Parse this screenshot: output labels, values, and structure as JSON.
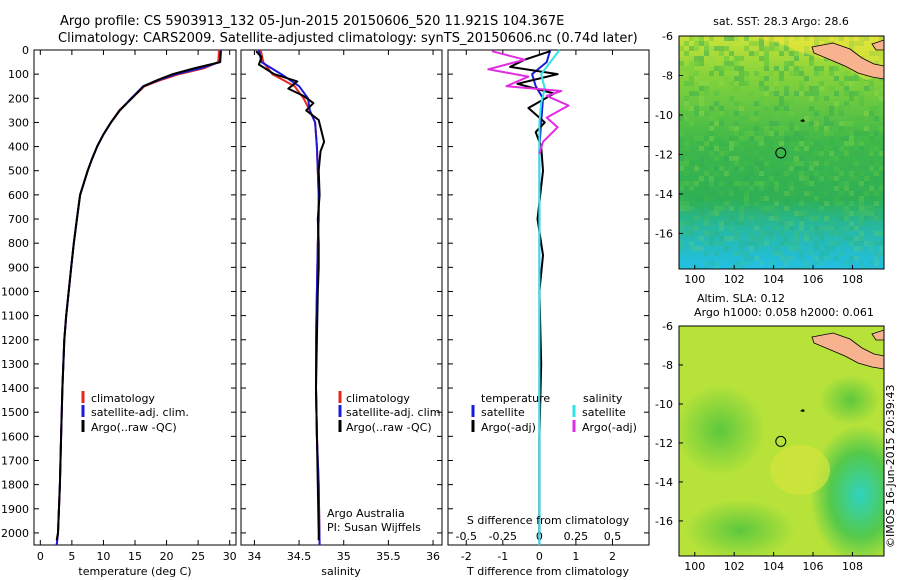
{
  "header": {
    "line1": "Argo profile: CS 5903913_132 05-Jun-2015 20150606_520 11.921S 104.367E",
    "line2": "Climatology: CARS2009. Satellite-adjusted climatology: synTS_20150606.nc (0.74d later)"
  },
  "watermark": "©IMOS 16-Jun-2015 20:39:43",
  "colors": {
    "climatology": "#e8271b",
    "satellite": "#1a1adc",
    "argo": "#000000",
    "salinity_satellite": "#2fe4e4",
    "salinity_argo": "#e22ce2",
    "land": "#f7b38f"
  },
  "chart_data": [
    {
      "type": "line",
      "panel": "temperature",
      "xlabel": "temperature (deg C)",
      "xlim": [
        -1,
        31
      ],
      "ylim": [
        2050,
        0
      ],
      "xticks": [
        "0",
        "5",
        "10",
        "15",
        "20",
        "25",
        "30"
      ],
      "yticks": [
        "0",
        "100",
        "200",
        "300",
        "400",
        "500",
        "600",
        "700",
        "800",
        "900",
        "1000",
        "1100",
        "1200",
        "1300",
        "1400",
        "1500",
        "1600",
        "1700",
        "1800",
        "1900",
        "2000"
      ],
      "legend": [
        "climatology",
        "satellite-adj. clim.",
        "Argo(..raw -QC)"
      ],
      "series": [
        {
          "name": "climatology",
          "color": "#e8271b",
          "x": [
            28.3,
            28.2,
            26.0,
            22.0,
            19.0,
            16.5,
            14.5,
            12.5,
            11.2,
            10.0,
            9.0,
            8.2,
            7.5,
            6.9,
            6.3,
            5.8,
            5.3,
            4.9,
            4.5,
            4.1,
            3.8,
            3.5,
            3.3,
            3.1,
            2.8,
            2.6
          ],
          "y": [
            0,
            50,
            75,
            100,
            125,
            150,
            200,
            250,
            300,
            350,
            400,
            450,
            500,
            550,
            600,
            700,
            800,
            900,
            1000,
            1100,
            1200,
            1400,
            1600,
            1800,
            2000,
            2050
          ]
        },
        {
          "name": "satellite-adj. clim.",
          "color": "#1a1adc",
          "x": [
            28.6,
            28.4,
            25.5,
            21.5,
            18.7,
            16.3,
            14.4,
            12.6,
            11.2,
            10.0,
            9.0,
            8.2,
            7.5,
            6.9,
            6.3,
            5.8,
            5.3,
            4.9,
            4.5,
            4.1,
            3.8,
            3.5,
            3.3,
            3.1,
            2.8,
            2.6
          ],
          "y": [
            0,
            50,
            75,
            100,
            125,
            150,
            200,
            250,
            300,
            350,
            400,
            450,
            500,
            550,
            600,
            700,
            800,
            900,
            1000,
            1100,
            1200,
            1400,
            1600,
            1800,
            2000,
            2050
          ]
        },
        {
          "name": "Argo(..raw -QC)",
          "color": "#000000",
          "x": [
            28.6,
            28.5,
            24.5,
            21.0,
            18.5,
            16.4,
            14.5,
            12.6,
            11.2,
            10.0,
            9.0,
            8.2,
            7.5,
            6.9,
            6.3,
            5.8,
            5.3,
            4.9,
            4.5,
            4.1,
            3.8,
            3.5,
            3.3,
            3.1,
            2.8,
            2.6
          ],
          "y": [
            5,
            50,
            75,
            100,
            125,
            150,
            200,
            250,
            300,
            350,
            400,
            450,
            500,
            550,
            600,
            700,
            800,
            900,
            1000,
            1100,
            1200,
            1400,
            1600,
            1800,
            2000,
            2030
          ]
        }
      ]
    },
    {
      "type": "line",
      "panel": "salinity",
      "xlabel": "salinity",
      "xlim": [
        33.85,
        36.1
      ],
      "ylim": [
        2050,
        0
      ],
      "xticks": [
        "34",
        "34.5",
        "35",
        "35.5",
        "36"
      ],
      "legend": [
        "climatology",
        "satellite-adj. clim.",
        "Argo(..raw -QC)"
      ],
      "annotation": [
        "Argo Australia",
        "PI: Susan Wijffels"
      ],
      "series": [
        {
          "name": "climatology",
          "color": "#e8271b",
          "x": [
            34.07,
            34.1,
            34.2,
            34.45,
            34.55,
            34.62,
            34.68,
            34.7,
            34.71,
            34.72,
            34.72,
            34.71,
            34.7,
            34.69,
            34.69,
            34.7,
            34.72,
            34.73
          ],
          "y": [
            0,
            50,
            100,
            150,
            200,
            250,
            300,
            400,
            500,
            600,
            700,
            800,
            1000,
            1200,
            1400,
            1600,
            1800,
            2050
          ]
        },
        {
          "name": "satellite-adj. clim.",
          "color": "#1a1adc",
          "x": [
            34.05,
            34.08,
            34.3,
            34.5,
            34.6,
            34.62,
            34.68,
            34.7,
            34.71,
            34.72,
            34.72,
            34.71,
            34.7,
            34.69,
            34.69,
            34.7,
            34.72,
            34.73
          ],
          "y": [
            0,
            50,
            100,
            150,
            200,
            250,
            300,
            400,
            500,
            600,
            700,
            800,
            1000,
            1200,
            1400,
            1600,
            1800,
            2050
          ]
        },
        {
          "name": "Argo(..raw -QC)",
          "color": "#000000",
          "x": [
            34.02,
            34.08,
            34.05,
            34.22,
            34.48,
            34.38,
            34.55,
            34.66,
            34.58,
            34.72,
            34.78,
            34.74,
            34.72,
            34.73,
            34.71,
            34.72,
            34.72,
            34.71,
            34.7,
            34.69,
            34.7,
            34.71,
            34.72,
            34.72
          ],
          "y": [
            5,
            30,
            60,
            100,
            130,
            160,
            190,
            220,
            250,
            290,
            380,
            420,
            500,
            600,
            700,
            800,
            900,
            1000,
            1200,
            1400,
            1600,
            1800,
            2000,
            2030
          ]
        }
      ]
    },
    {
      "type": "line",
      "panel": "difference",
      "xlabel": "T difference from climatology",
      "xlabel_top": "S difference from climatology",
      "xlim": [
        -2.5,
        3.0
      ],
      "ylim": [
        2050,
        0
      ],
      "xticks": [
        "-2",
        "-1",
        "0",
        "1",
        "2"
      ],
      "xticks_top": [
        "-0.5",
        "-0.25",
        "0",
        "0.25",
        "0.5"
      ],
      "legend": {
        "temperature_header": "temperature",
        "salinity_header": "salinity",
        "items": [
          "satellite",
          "Argo(-adj)",
          "satellite",
          "Argo(-adj)"
        ]
      },
      "series": [
        {
          "name": "temperature satellite",
          "color": "#1a1adc",
          "x": [
            0.3,
            0.2,
            -0.2,
            -0.1,
            0.1,
            0.05,
            0.0,
            0.0,
            0.0,
            0.0,
            0.0,
            0.0,
            0.0
          ],
          "y": [
            0,
            50,
            100,
            150,
            200,
            300,
            400,
            600,
            800,
            1000,
            1400,
            1800,
            2050
          ]
        },
        {
          "name": "temperature Argo(-adj)",
          "color": "#000000",
          "x": [
            0.3,
            -0.4,
            -0.8,
            0.5,
            -0.6,
            0.4,
            -0.3,
            0.15,
            -0.1,
            0.05,
            0.1,
            -0.05,
            0.1,
            0.0,
            0.05,
            0.0,
            0.0
          ],
          "y": [
            5,
            40,
            70,
            100,
            140,
            180,
            240,
            300,
            340,
            400,
            500,
            700,
            850,
            1000,
            1300,
            1600,
            2030
          ]
        },
        {
          "name": "salinity satellite",
          "color": "#2fe4e4",
          "x": [
            0.55,
            0.3,
            0.05,
            0.15,
            0.05,
            0.0,
            0.0,
            0.0,
            0.0,
            0.0,
            0.0,
            0.0
          ],
          "y": [
            0,
            50,
            100,
            160,
            220,
            300,
            400,
            600,
            800,
            1000,
            1400,
            2050
          ]
        },
        {
          "name": "salinity Argo(-adj)",
          "color": "#e22ce2",
          "x": [
            -1.3,
            -0.4,
            -1.4,
            -0.3,
            -0.9,
            0.6,
            0.2,
            0.8,
            0.2,
            0.5,
            0.1,
            0.0
          ],
          "y": [
            5,
            40,
            80,
            110,
            150,
            170,
            190,
            230,
            280,
            320,
            380,
            430
          ]
        }
      ]
    },
    {
      "type": "heatmap",
      "panel": "sst-map",
      "title": "sat. SST: 28.3 Argo: 28.6",
      "xlim": [
        99.2,
        109.6
      ],
      "ylim": [
        -17.8,
        -6.0
      ],
      "xticks": [
        "100",
        "102",
        "104",
        "106",
        "108"
      ],
      "yticks": [
        "-6",
        "-8",
        "-10",
        "-12",
        "-14",
        "-16"
      ],
      "profile_point": {
        "lon": 104.367,
        "lat": -11.921
      }
    },
    {
      "type": "heatmap",
      "panel": "sla-map",
      "title": "Altim. SLA: 0.12",
      "subtitle": "Argo h1000: 0.058 h2000: 0.061",
      "xlim": [
        99.2,
        109.6
      ],
      "ylim": [
        -17.8,
        -6.0
      ],
      "xticks": [
        "100",
        "102",
        "104",
        "106",
        "108"
      ],
      "yticks": [
        "-6",
        "-8",
        "-10",
        "-12",
        "-14",
        "-16"
      ],
      "profile_point": {
        "lon": 104.367,
        "lat": -11.921
      }
    }
  ]
}
